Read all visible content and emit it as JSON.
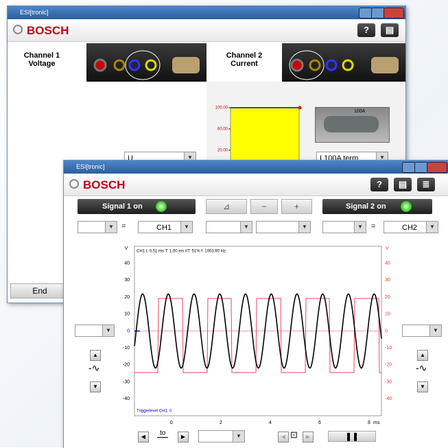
{
  "back_window": {
    "title": "ESI[tronic]",
    "brand": "BOSCH",
    "channel1": {
      "title": [
        "Channel 1",
        "Voltage"
      ],
      "select": "U"
    },
    "channel2": {
      "title": [
        "Channel 2",
        "Current"
      ],
      "select": "I 100A term",
      "probe_label": "100A",
      "bar_ticks": [
        "100.00",
        "60.00",
        "20.00"
      ]
    },
    "end_button": "End"
  },
  "front_window": {
    "title": "ESI[tronic]",
    "brand": "BOSCH",
    "signal1_button": "Signal 1 on",
    "signal2_button": "Signal 2 on",
    "ch1_select": {
      "op": "=",
      "value": "CH1"
    },
    "ch2_select": {
      "op": "=",
      "value": "CH2"
    },
    "scope": {
      "info": "CH1  t: 0,51 ms   T: 1,00 ms   t/T: 51%   f: 1003,90 Hz",
      "trigger": "Triggerlevel CH1: 0",
      "y_unit": "V",
      "y2_unit": "V",
      "x_unit": "ms",
      "ylim": [
        -50,
        50
      ],
      "yticks": [
        40,
        30,
        20,
        10,
        0,
        -10,
        -20,
        -30,
        -40
      ],
      "y2ticks": [
        40,
        30,
        20,
        10,
        0,
        -10,
        -20,
        -30,
        -40
      ],
      "xlim": [
        -1.5,
        8.5
      ],
      "xticks": [
        0,
        2,
        4,
        6,
        8
      ]
    },
    "time_label": "to"
  }
}
